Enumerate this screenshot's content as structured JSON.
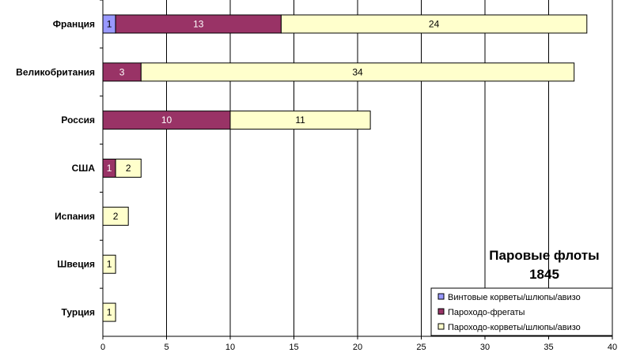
{
  "chart_data": {
    "type": "bar",
    "orientation": "horizontal",
    "stacked": true,
    "title_lines": [
      "Паровые флоты",
      "1845"
    ],
    "xlim": [
      0,
      40
    ],
    "x_ticks": [
      0,
      5,
      10,
      15,
      20,
      25,
      30,
      35,
      40
    ],
    "grid": "vertical",
    "legend_position": "bottom-right",
    "categories": [
      "Франция",
      "Великобритания",
      "Россия",
      "США",
      "Испания",
      "Швеция",
      "Турция"
    ],
    "series": [
      {
        "name": "Винтовые корветы/шлюпы/авизо",
        "color": "#9999ff",
        "values": [
          1,
          0,
          0,
          0,
          0,
          0,
          0
        ]
      },
      {
        "name": "Пароходо-фрегаты",
        "color": "#993366",
        "values": [
          13,
          3,
          10,
          1,
          0,
          0,
          0
        ]
      },
      {
        "name": "Пароходо-корветы/шлюпы/авизо",
        "color": "#ffffcc",
        "values": [
          24,
          34,
          11,
          2,
          2,
          1,
          1
        ]
      }
    ]
  }
}
